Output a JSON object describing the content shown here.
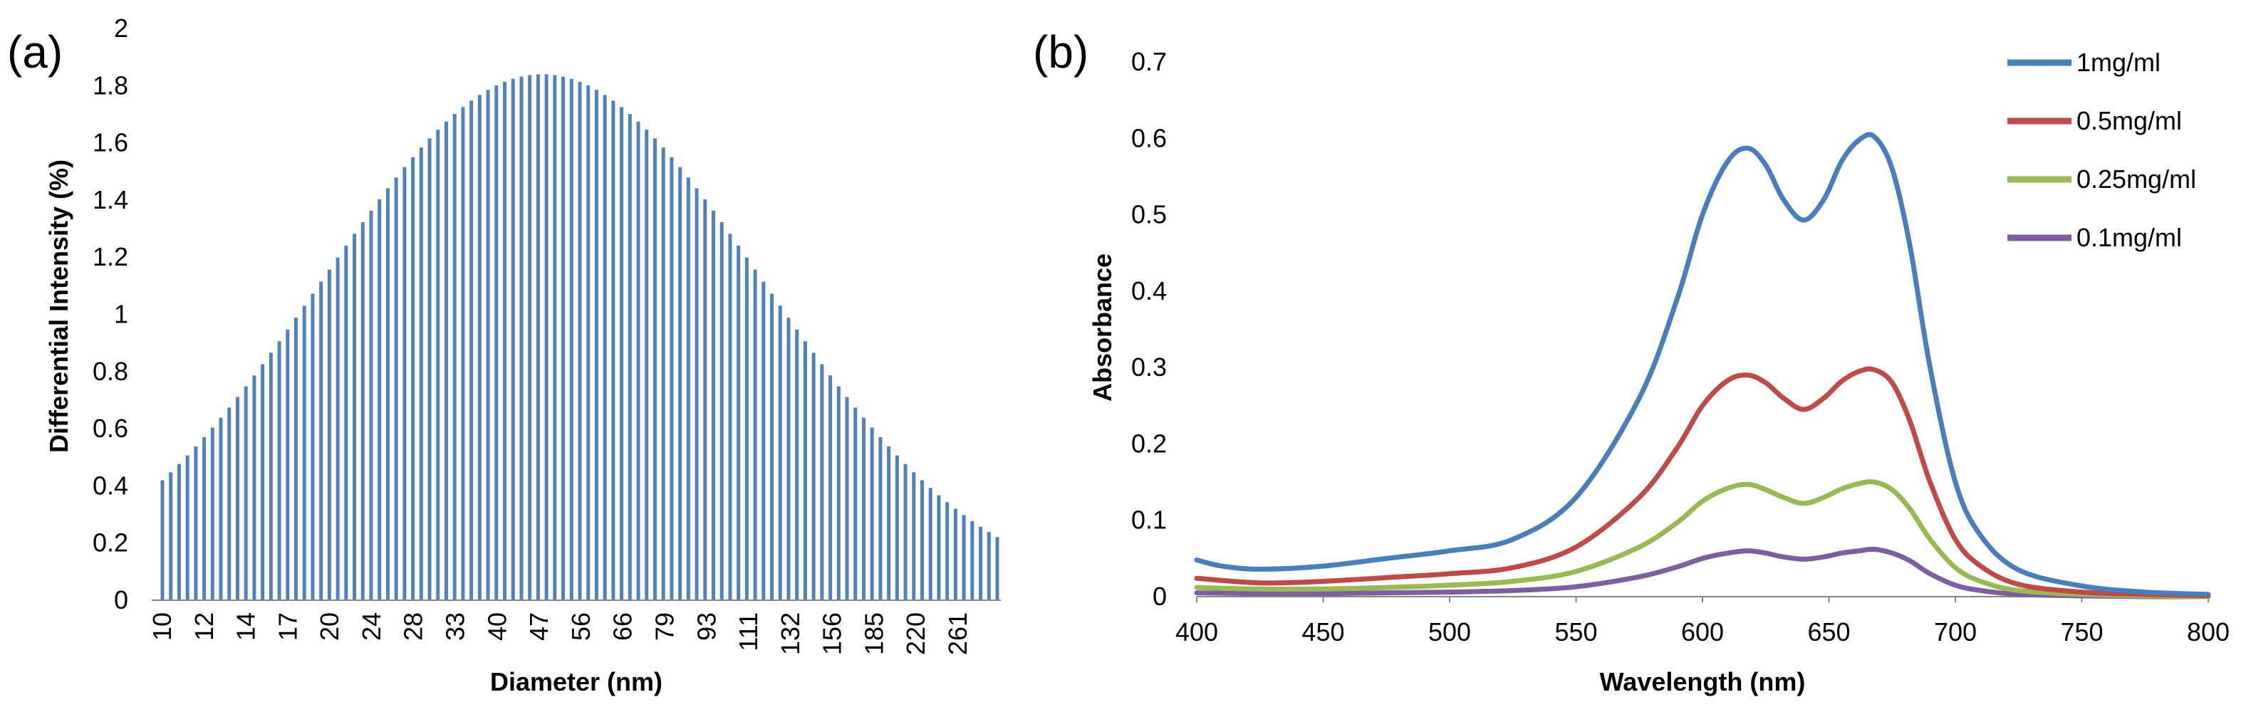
{
  "chart_data": [
    {
      "panel_label": "(a)",
      "type": "bar",
      "xlabel": "Diameter (nm)",
      "ylabel": "Differential Intensity (%)",
      "ylim": [
        0,
        2
      ],
      "yticks": [
        "0",
        "0.2",
        "0.4",
        "0.6",
        "0.8",
        "1",
        "1.2",
        "1.4",
        "1.6",
        "1.8",
        "2"
      ],
      "xtick_labels": [
        "10",
        "12",
        "14",
        "17",
        "20",
        "24",
        "28",
        "33",
        "40",
        "47",
        "56",
        "66",
        "79",
        "93",
        "111",
        "132",
        "156",
        "185",
        "220",
        "261"
      ],
      "bar_count": 101,
      "peak_value": 1.84,
      "color": "#4f81bd",
      "distribution": "log-normal, peak near 47 nm"
    },
    {
      "panel_label": "(b)",
      "type": "line",
      "xlabel": "Wavelength (nm)",
      "ylabel": "Absorbance",
      "xlim": [
        400,
        800
      ],
      "ylim": [
        0,
        0.7
      ],
      "xticks": [
        "400",
        "450",
        "500",
        "550",
        "600",
        "650",
        "700",
        "750",
        "800"
      ],
      "yticks": [
        "0",
        "0.1",
        "0.2",
        "0.3",
        "0.4",
        "0.5",
        "0.6",
        "0.7"
      ],
      "legend": "top-right",
      "series": [
        {
          "name": "1mg/ml",
          "color": "#4a7ebb",
          "x": [
            400,
            410,
            425,
            450,
            475,
            500,
            525,
            550,
            575,
            590,
            600,
            610,
            618,
            625,
            632,
            640,
            648,
            655,
            662,
            668,
            675,
            682,
            690,
            700,
            710,
            725,
            750,
            775,
            800
          ],
          "y": [
            0.048,
            0.04,
            0.036,
            0.04,
            0.05,
            0.06,
            0.075,
            0.13,
            0.26,
            0.39,
            0.5,
            0.57,
            0.587,
            0.565,
            0.52,
            0.493,
            0.52,
            0.57,
            0.598,
            0.602,
            0.56,
            0.46,
            0.3,
            0.15,
            0.08,
            0.035,
            0.014,
            0.006,
            0.003
          ]
        },
        {
          "name": "0.5mg/ml",
          "color": "#be4b48",
          "x": [
            400,
            425,
            450,
            475,
            500,
            525,
            550,
            575,
            590,
            600,
            610,
            618,
            625,
            632,
            640,
            648,
            655,
            662,
            668,
            675,
            682,
            690,
            700,
            710,
            725,
            750,
            775,
            800
          ],
          "y": [
            0.024,
            0.018,
            0.02,
            0.025,
            0.03,
            0.038,
            0.065,
            0.13,
            0.195,
            0.25,
            0.283,
            0.29,
            0.28,
            0.26,
            0.245,
            0.26,
            0.282,
            0.295,
            0.297,
            0.28,
            0.23,
            0.15,
            0.075,
            0.04,
            0.016,
            0.006,
            0.003,
            0.001
          ]
        },
        {
          "name": "0.25mg/ml",
          "color": "#98b954",
          "x": [
            400,
            425,
            450,
            475,
            500,
            525,
            550,
            575,
            590,
            600,
            610,
            618,
            625,
            632,
            640,
            648,
            655,
            662,
            668,
            675,
            682,
            690,
            700,
            710,
            725,
            750,
            775,
            800
          ],
          "y": [
            0.012,
            0.01,
            0.01,
            0.012,
            0.015,
            0.02,
            0.033,
            0.065,
            0.097,
            0.125,
            0.142,
            0.147,
            0.14,
            0.13,
            0.122,
            0.13,
            0.141,
            0.148,
            0.15,
            0.14,
            0.115,
            0.075,
            0.038,
            0.02,
            0.008,
            0.003,
            0.001,
            0.0
          ]
        },
        {
          "name": "0.1mg/ml",
          "color": "#7d5fa0",
          "x": [
            400,
            425,
            450,
            475,
            500,
            525,
            550,
            575,
            590,
            600,
            610,
            618,
            625,
            632,
            640,
            648,
            655,
            662,
            668,
            675,
            682,
            690,
            700,
            710,
            725,
            750,
            775,
            800
          ],
          "y": [
            0.005,
            0.004,
            0.004,
            0.005,
            0.006,
            0.008,
            0.013,
            0.026,
            0.039,
            0.05,
            0.057,
            0.06,
            0.057,
            0.052,
            0.049,
            0.052,
            0.057,
            0.06,
            0.062,
            0.057,
            0.047,
            0.03,
            0.015,
            0.008,
            0.003,
            0.001,
            0.0,
            0.0
          ]
        }
      ]
    }
  ]
}
